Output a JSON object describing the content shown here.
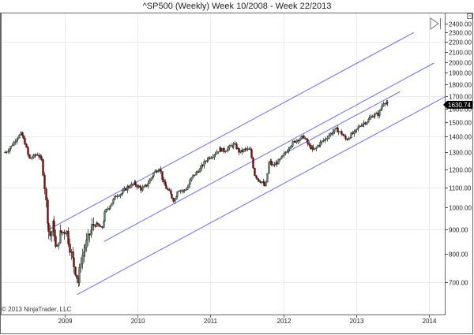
{
  "header": {
    "title": "^SP500 (Weekly)  Week 10/2008 - Week 22/2013"
  },
  "footer": {
    "copyright": "© 2013 NinjaTrader, LLC"
  },
  "controls": {
    "scroll_end_icon": "skip-to-end-icon",
    "properties_icon": "panel-properties-icon"
  },
  "colors": {
    "up_bar": "#5f8a68",
    "down_bar": "#8b0000",
    "wick": "#000000",
    "channel_line": "#6b6bf5",
    "grid": "#ebebeb",
    "axis": "#555555",
    "last_price_bg": "#000000",
    "last_price_text": "#ffffff"
  },
  "chart_data": {
    "type": "ohlc",
    "title": "^SP500 (Weekly)  Week 10/2008 - Week 22/2013",
    "xlabel": "",
    "ylabel": "",
    "y_scale": "log",
    "ylim": [
      640,
      2450
    ],
    "y_ticks": [
      "2400.00",
      "2300.00",
      "2200.00",
      "2100.00",
      "2000.00",
      "1900.00",
      "1800.00",
      "1700.00",
      "1600.00",
      "1500.00",
      "1400.00",
      "1300.00",
      "1200.00",
      "1100.00",
      "1000.00",
      "900.00",
      "800.00",
      "700.00"
    ],
    "y_tick_values": [
      2400,
      2300,
      2200,
      2100,
      2000,
      1900,
      1800,
      1700,
      1600,
      1500,
      1400,
      1300,
      1200,
      1100,
      1000,
      900,
      800,
      700
    ],
    "x_ticks": [
      "2009",
      "2010",
      "2011",
      "2012",
      "2013",
      "2014"
    ],
    "x_tick_values": [
      2009,
      2010,
      2011,
      2012,
      2013,
      2014
    ],
    "last_price": "1630.74",
    "grid": true,
    "series_path": [
      [
        2008.18,
        1300
      ],
      [
        2008.25,
        1330
      ],
      [
        2008.33,
        1390
      ],
      [
        2008.4,
        1420
      ],
      [
        2008.45,
        1360
      ],
      [
        2008.5,
        1260
      ],
      [
        2008.55,
        1270
      ],
      [
        2008.62,
        1290
      ],
      [
        2008.68,
        1250
      ],
      [
        2008.72,
        1100
      ],
      [
        2008.77,
        900
      ],
      [
        2008.8,
        870
      ],
      [
        2008.84,
        930
      ],
      [
        2008.88,
        800
      ],
      [
        2008.92,
        880
      ],
      [
        2008.97,
        890
      ],
      [
        2009.02,
        900
      ],
      [
        2009.06,
        830
      ],
      [
        2009.12,
        760
      ],
      [
        2009.18,
        700
      ],
      [
        2009.22,
        780
      ],
      [
        2009.3,
        850
      ],
      [
        2009.38,
        920
      ],
      [
        2009.45,
        920
      ],
      [
        2009.5,
        900
      ],
      [
        2009.55,
        980
      ],
      [
        2009.62,
        1010
      ],
      [
        2009.7,
        1060
      ],
      [
        2009.78,
        1070
      ],
      [
        2009.85,
        1100
      ],
      [
        2009.95,
        1120
      ],
      [
        2010.05,
        1090
      ],
      [
        2010.12,
        1110
      ],
      [
        2010.22,
        1180
      ],
      [
        2010.3,
        1210
      ],
      [
        2010.35,
        1120
      ],
      [
        2010.42,
        1080
      ],
      [
        2010.5,
        1030
      ],
      [
        2010.55,
        1090
      ],
      [
        2010.62,
        1080
      ],
      [
        2010.68,
        1100
      ],
      [
        2010.75,
        1160
      ],
      [
        2010.85,
        1200
      ],
      [
        2010.95,
        1260
      ],
      [
        2011.05,
        1290
      ],
      [
        2011.12,
        1320
      ],
      [
        2011.18,
        1310
      ],
      [
        2011.25,
        1330
      ],
      [
        2011.32,
        1350
      ],
      [
        2011.4,
        1300
      ],
      [
        2011.48,
        1320
      ],
      [
        2011.55,
        1310
      ],
      [
        2011.6,
        1170
      ],
      [
        2011.65,
        1140
      ],
      [
        2011.7,
        1130
      ],
      [
        2011.75,
        1100
      ],
      [
        2011.8,
        1250
      ],
      [
        2011.85,
        1220
      ],
      [
        2011.92,
        1240
      ],
      [
        2012.0,
        1280
      ],
      [
        2012.08,
        1340
      ],
      [
        2012.18,
        1380
      ],
      [
        2012.28,
        1400
      ],
      [
        2012.35,
        1340
      ],
      [
        2012.42,
        1310
      ],
      [
        2012.48,
        1350
      ],
      [
        2012.56,
        1380
      ],
      [
        2012.64,
        1420
      ],
      [
        2012.72,
        1450
      ],
      [
        2012.8,
        1420
      ],
      [
        2012.86,
        1380
      ],
      [
        2012.92,
        1410
      ],
      [
        2012.98,
        1430
      ],
      [
        2013.05,
        1480
      ],
      [
        2013.15,
        1510
      ],
      [
        2013.22,
        1550
      ],
      [
        2013.3,
        1560
      ],
      [
        2013.35,
        1620
      ],
      [
        2013.38,
        1660
      ],
      [
        2013.41,
        1650
      ],
      [
        2013.43,
        1630
      ]
    ],
    "channel_lines": [
      {
        "name": "upper-channel",
        "x1": 2008.78,
        "y1": 900,
        "x2": 2013.79,
        "y2": 2300
      },
      {
        "name": "mid-upper-channel",
        "x1": 2009.54,
        "y1": 850,
        "x2": 2014.07,
        "y2": 1990
      },
      {
        "name": "mid-lower-channel",
        "x1": 2012.05,
        "y1": 1300,
        "x2": 2013.6,
        "y2": 1735
      },
      {
        "name": "lower-channel",
        "x1": 2009.17,
        "y1": 660,
        "x2": 2014.24,
        "y2": 1700
      }
    ]
  }
}
